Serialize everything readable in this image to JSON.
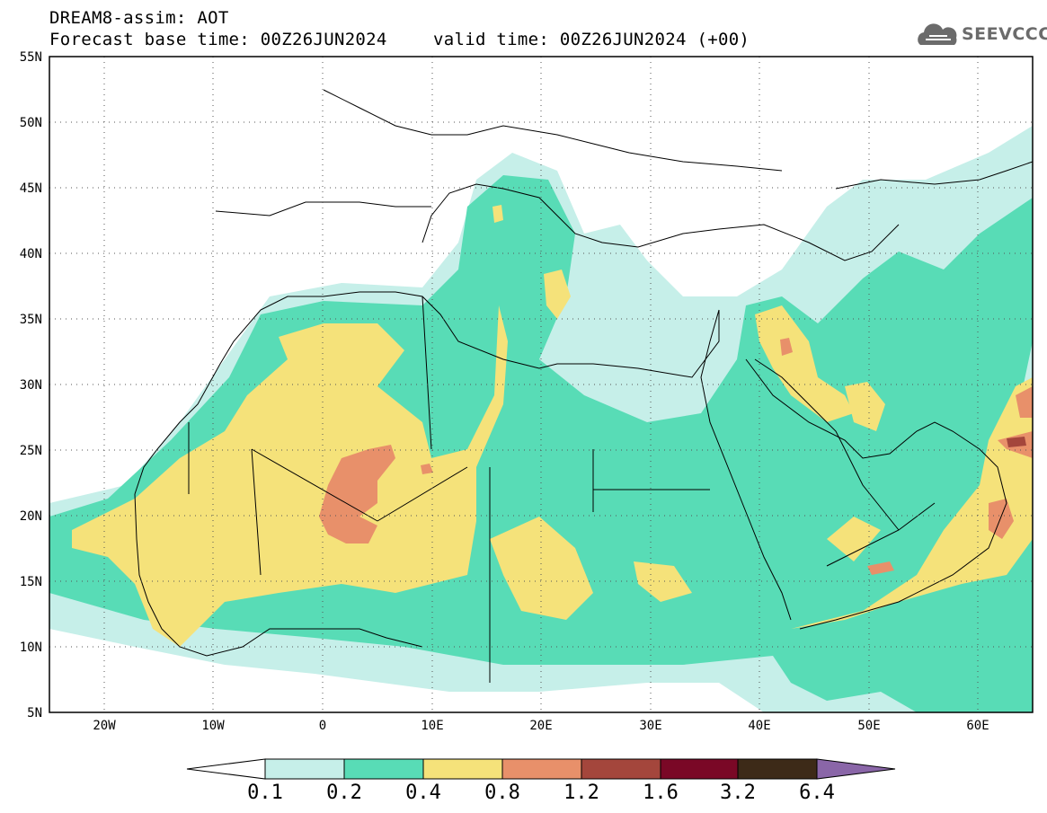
{
  "header": {
    "title": "DREAM8-assim: AOT",
    "base_time": "Forecast base time: 00Z26JUN2024",
    "valid_time": "valid time: 00Z26JUN2024 (+00)"
  },
  "logo": {
    "text": "SEEVCCC",
    "icon": "cloud-icon"
  },
  "map": {
    "lat_labels": [
      "55N",
      "50N",
      "45N",
      "40N",
      "35N",
      "30N",
      "25N",
      "20N",
      "15N",
      "10N",
      "5N"
    ],
    "lon_labels": [
      "20W",
      "10W",
      "0",
      "10E",
      "20E",
      "30E",
      "40E",
      "50E",
      "60E"
    ],
    "lat_range": [
      5,
      55
    ],
    "lon_range": [
      -25,
      65
    ],
    "grid": "dotted"
  },
  "colorbar": {
    "levels": [
      "0.1",
      "0.2",
      "0.4",
      "0.8",
      "1.2",
      "1.6",
      "3.2",
      "6.4"
    ],
    "colors": [
      "#c6efe9",
      "#58dcb6",
      "#f5e27a",
      "#e8906a",
      "#a4463c",
      "#7a0826",
      "#3d2a18",
      "#8a66a8"
    ]
  }
}
